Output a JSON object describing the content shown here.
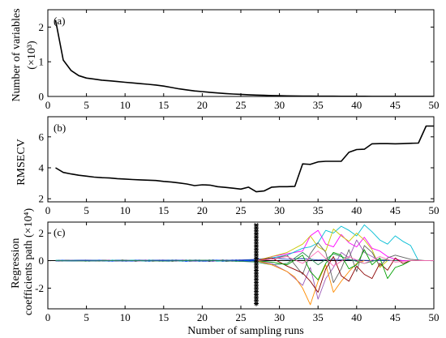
{
  "chart_data": [
    {
      "type": "line",
      "panel_label": "(a)",
      "ylabel": "Number of variables",
      "ylabel_unit": "(×10³)",
      "xlim": [
        0,
        50
      ],
      "ylim": [
        0,
        2.5
      ],
      "xticks": [
        0,
        5,
        10,
        15,
        20,
        25,
        30,
        35,
        40,
        45,
        50
      ],
      "yticks": [
        0,
        1,
        2
      ],
      "grid": false,
      "series": [
        {
          "color": "#000000",
          "x": [
            1,
            2,
            3,
            4,
            5,
            6,
            7,
            8,
            9,
            10,
            11,
            12,
            13,
            14,
            15,
            16,
            17,
            18,
            19,
            20,
            21,
            22,
            23,
            24,
            25,
            26,
            27,
            28,
            29,
            30,
            31,
            32,
            33,
            34,
            35,
            36,
            37,
            38,
            39,
            40,
            41,
            42,
            43,
            44,
            45,
            46,
            47,
            48,
            49,
            50
          ],
          "y": [
            2.2,
            1.05,
            0.75,
            0.6,
            0.53,
            0.5,
            0.47,
            0.45,
            0.43,
            0.41,
            0.39,
            0.37,
            0.35,
            0.33,
            0.3,
            0.26,
            0.22,
            0.19,
            0.16,
            0.14,
            0.12,
            0.1,
            0.085,
            0.07,
            0.06,
            0.05,
            0.04,
            0.032,
            0.025,
            0.02,
            0.016,
            0.013,
            0.011,
            0.009,
            0.008,
            0.007,
            0.006,
            0.005,
            0.005,
            0.004,
            0.004,
            0.003,
            0.003,
            0.003,
            0.002,
            0.002,
            0.002,
            0.002,
            0.002,
            0.002
          ]
        }
      ]
    },
    {
      "type": "line",
      "panel_label": "(b)",
      "ylabel": "RMSECV",
      "xlim": [
        0,
        50
      ],
      "ylim": [
        1.8,
        7.3
      ],
      "xticks": [
        0,
        5,
        10,
        15,
        20,
        25,
        30,
        35,
        40,
        45,
        50
      ],
      "yticks": [
        2,
        4,
        6
      ],
      "grid": false,
      "series": [
        {
          "color": "#000000",
          "x": [
            1,
            2,
            3,
            4,
            5,
            6,
            7,
            8,
            9,
            10,
            11,
            12,
            13,
            14,
            15,
            16,
            17,
            18,
            19,
            20,
            21,
            22,
            23,
            24,
            25,
            26,
            27,
            28,
            29,
            30,
            31,
            32,
            33,
            34,
            35,
            36,
            37,
            38,
            39,
            40,
            41,
            42,
            43,
            44,
            45,
            46,
            47,
            48,
            49,
            50
          ],
          "y": [
            4.0,
            3.7,
            3.6,
            3.52,
            3.46,
            3.4,
            3.36,
            3.34,
            3.3,
            3.27,
            3.24,
            3.22,
            3.2,
            3.18,
            3.12,
            3.08,
            3.02,
            2.95,
            2.85,
            2.9,
            2.88,
            2.78,
            2.73,
            2.68,
            2.62,
            2.75,
            2.45,
            2.5,
            2.75,
            2.78,
            2.78,
            2.8,
            4.25,
            4.22,
            4.38,
            4.42,
            4.42,
            4.42,
            5.0,
            5.18,
            5.2,
            5.55,
            5.56,
            5.56,
            5.55,
            5.56,
            5.58,
            5.6,
            6.7,
            6.7
          ]
        }
      ]
    },
    {
      "type": "line",
      "panel_label": "(c)",
      "ylabel": "Regression coefficients path (×10⁴)",
      "xlabel": "Number of sampling runs",
      "xlim": [
        0,
        50
      ],
      "ylim": [
        -3.5,
        2.8
      ],
      "xticks": [
        0,
        5,
        10,
        15,
        20,
        25,
        30,
        35,
        40,
        45,
        50
      ],
      "yticks": [
        -2,
        0,
        2
      ],
      "grid": false,
      "marker_line_x": 27,
      "series": [
        {
          "color": "#1f3fbf",
          "x": [
            1,
            5,
            10,
            15,
            20,
            25,
            27,
            29,
            31,
            33,
            35,
            37,
            39,
            41,
            43,
            45,
            47,
            50
          ],
          "y": [
            0,
            0.03,
            -0.02,
            0.04,
            -0.03,
            0.05,
            0.1,
            0.2,
            0.1,
            0.15,
            0.05,
            0.1,
            0.05,
            0.02,
            0,
            0,
            0,
            0
          ]
        },
        {
          "color": "#2e8b57",
          "x": [
            1,
            5,
            10,
            15,
            20,
            25,
            27,
            29,
            31,
            33,
            35,
            37,
            39,
            41,
            43,
            45,
            47,
            50
          ],
          "y": [
            0,
            -0.03,
            0.02,
            -0.04,
            0.03,
            -0.05,
            -0.1,
            -0.3,
            -0.2,
            0.6,
            -0.3,
            0.5,
            0.1,
            -0.2,
            0.1,
            0,
            0,
            0
          ]
        },
        {
          "color": "#ff00ff",
          "x": [
            27,
            29,
            31,
            33,
            34,
            35,
            36,
            37,
            38,
            39,
            40,
            41,
            42,
            43,
            44,
            45,
            46,
            47
          ],
          "y": [
            0,
            0.3,
            0.5,
            0.7,
            1.8,
            2.2,
            1.2,
            1.0,
            1.9,
            1.3,
            1.0,
            1.7,
            0.9,
            0.7,
            0.3,
            0.1,
            0,
            0
          ]
        },
        {
          "color": "#00bcd4",
          "x": [
            27,
            29,
            31,
            33,
            34,
            35,
            36,
            37,
            38,
            39,
            40,
            41,
            42,
            43,
            44,
            45,
            46,
            47,
            48
          ],
          "y": [
            0,
            0.2,
            0.4,
            0.9,
            1.0,
            1.3,
            2.2,
            2.0,
            2.5,
            2.2,
            1.8,
            2.6,
            2.1,
            1.5,
            1.2,
            1.8,
            1.4,
            1.1,
            0
          ]
        },
        {
          "color": "#c8c800",
          "x": [
            27,
            29,
            31,
            33,
            34,
            35,
            36,
            37,
            38,
            39,
            40,
            41,
            42,
            43,
            44
          ],
          "y": [
            0,
            0.3,
            0.6,
            1.2,
            1.8,
            1.0,
            0.7,
            2.3,
            1.8,
            1.4,
            2.0,
            1.5,
            0.8,
            -0.5,
            0
          ]
        },
        {
          "color": "#9b59b6",
          "x": [
            27,
            29,
            31,
            33,
            34,
            35,
            36,
            37,
            38,
            39,
            40,
            41,
            42,
            43
          ],
          "y": [
            0,
            -0.2,
            -0.8,
            -1.8,
            -0.5,
            -2.8,
            -1.3,
            -0.5,
            0.6,
            0.2,
            1.5,
            0.6,
            0.3,
            0
          ]
        },
        {
          "color": "#ff8c00",
          "x": [
            27,
            29,
            31,
            32,
            33,
            34,
            35,
            36,
            37,
            38,
            39,
            40,
            41
          ],
          "y": [
            0,
            -0.3,
            -0.8,
            -1.2,
            -2.0,
            -3.2,
            -1.5,
            -0.3,
            -2.3,
            -1.5,
            -0.8,
            -0.2,
            0
          ]
        },
        {
          "color": "#606060",
          "x": [
            27,
            29,
            31,
            33,
            34,
            35,
            36,
            37,
            38,
            39,
            40,
            41,
            42,
            43,
            44,
            45,
            47,
            49
          ],
          "y": [
            0,
            0.1,
            0.4,
            -1.0,
            0.5,
            1.3,
            0.6,
            -1.6,
            -0.6,
            0.8,
            -0.8,
            1.1,
            0.6,
            -0.4,
            0.2,
            0.4,
            0.1,
            0
          ]
        },
        {
          "color": "#8b0000",
          "x": [
            27,
            29,
            31,
            33,
            34,
            35,
            36,
            37,
            38,
            39,
            40,
            41,
            42,
            43,
            44,
            45,
            46,
            47
          ],
          "y": [
            0,
            0.2,
            -0.4,
            -0.9,
            -1.5,
            -2.3,
            -0.6,
            0.3,
            -1.1,
            -1.5,
            -0.4,
            -1.0,
            -1.3,
            -0.2,
            -0.7,
            0.2,
            -0.2,
            0
          ]
        },
        {
          "color": "#00a000",
          "x": [
            27,
            29,
            31,
            33,
            34,
            35,
            36,
            37,
            38,
            39,
            40,
            41,
            42,
            43,
            44,
            45,
            46,
            47,
            48
          ],
          "y": [
            0,
            -0.1,
            -0.3,
            0.4,
            -0.8,
            -1.4,
            -0.2,
            0.6,
            0.4,
            -0.6,
            -0.3,
            0.8,
            -0.3,
            0.2,
            -1.3,
            -0.5,
            -0.3,
            0,
            0
          ]
        },
        {
          "color": "#ff69b4",
          "x": [
            27,
            29,
            31,
            33,
            35,
            37,
            39,
            41,
            43,
            45,
            47,
            49,
            50
          ],
          "y": [
            0,
            0.1,
            0.3,
            -0.2,
            0.7,
            -0.4,
            0.3,
            -0.2,
            0.3,
            -0.1,
            0,
            0,
            0
          ]
        }
      ]
    }
  ]
}
